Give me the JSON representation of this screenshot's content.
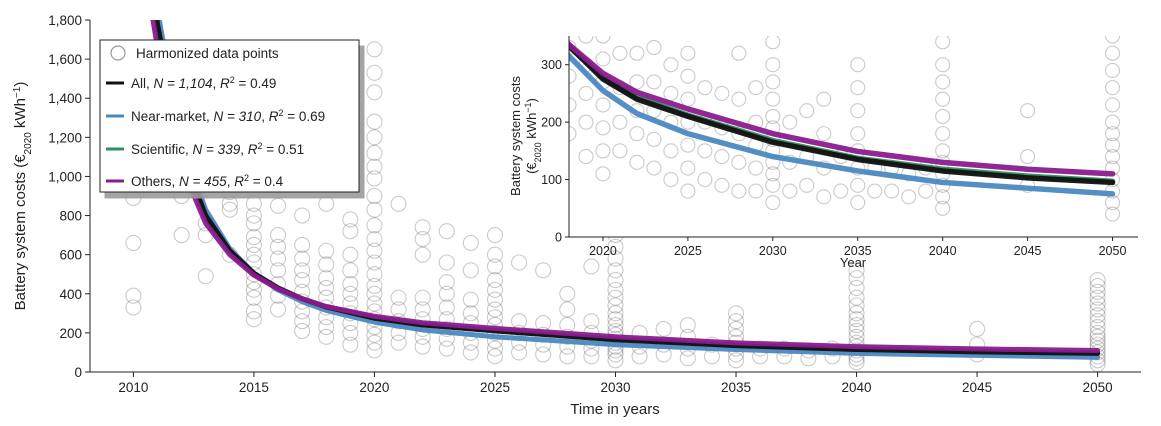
{
  "chart_data": {
    "type": "scatter",
    "main": {
      "xlabel": "Time in years",
      "ylabel": "Battery system costs (€2020 kWh−1)",
      "ylabel_parts": {
        "pre": "Battery system costs (€",
        "sub": "2020",
        "mid": " kWh",
        "sup": "−1",
        "post": ")"
      },
      "xlim": [
        2008.2,
        2051.8
      ],
      "ylim": [
        0,
        1800
      ],
      "xticks": [
        2010,
        2015,
        2020,
        2025,
        2030,
        2035,
        2040,
        2045,
        2050
      ],
      "xtick_labels": [
        "2010",
        "2015",
        "2020",
        "2025",
        "2030",
        "2035",
        "2040",
        "2045",
        "2050"
      ],
      "yticks": [
        0,
        200,
        400,
        600,
        800,
        1000,
        1200,
        1400,
        1600,
        1800
      ],
      "ytick_labels": [
        "0",
        "200",
        "400",
        "600",
        "800",
        "1,000",
        "1,200",
        "1,400",
        "1,600",
        "1,800"
      ],
      "grid": false
    },
    "inset": {
      "xlabel": "Year",
      "ylabel_line1": "Battery system costs",
      "ylabel_line2_parts": {
        "pre": "(€",
        "sub": "2020",
        "mid": " kWh",
        "sup": "−1",
        "post": ")"
      },
      "xlim": [
        2018,
        2051.5
      ],
      "ylim": [
        0,
        350
      ],
      "xticks": [
        2020,
        2025,
        2030,
        2035,
        2040,
        2045,
        2050
      ],
      "xtick_labels": [
        "2020",
        "2025",
        "2030",
        "2035",
        "2040",
        "2045",
        "2050"
      ],
      "yticks": [
        0,
        100,
        200,
        300
      ],
      "ytick_labels": [
        "0",
        "100",
        "200",
        "300"
      ]
    },
    "legend": {
      "position": "top-left",
      "points_label": "Harmonized data points",
      "entries": [
        {
          "name": "All",
          "n_label": "N = 1,104",
          "r2_label": "R",
          "r2_sup": "2",
          "r2_value": " = 0.49",
          "color": "#111111"
        },
        {
          "name": "Near-market",
          "n_label": "N = 310",
          "r2_label": "R",
          "r2_sup": "2",
          "r2_value": " = 0.69",
          "color": "#4a88c2"
        },
        {
          "name": "Scientific",
          "n_label": "N = 339",
          "r2_label": "R",
          "r2_sup": "2",
          "r2_value": " = 0.51",
          "color": "#2f8f5f"
        },
        {
          "name": "Others",
          "n_label": "N = 455",
          "r2_label": "R",
          "r2_sup": "2",
          "r2_value": " = 0.4",
          "color": "#8b1a8f"
        }
      ]
    },
    "fitted_series": [
      {
        "name": "All",
        "color": "#111111",
        "x": [
          2010,
          2011,
          2012,
          2013,
          2014,
          2015,
          2016,
          2017,
          2018,
          2020,
          2022,
          2025,
          2030,
          2035,
          2040,
          2045,
          2050
        ],
        "values": [
          2700,
          1780,
          1120,
          800,
          620,
          505,
          430,
          375,
          333,
          275,
          240,
          210,
          165,
          135,
          115,
          103,
          95
        ]
      },
      {
        "name": "Near-market",
        "color": "#4a88c2",
        "x": [
          2010,
          2011,
          2012,
          2013,
          2014,
          2015,
          2016,
          2017,
          2018,
          2020,
          2022,
          2025,
          2030,
          2035,
          2040,
          2045,
          2050
        ],
        "values": [
          2900,
          1850,
          1170,
          830,
          630,
          505,
          420,
          360,
          315,
          255,
          215,
          180,
          140,
          115,
          95,
          85,
          75
        ]
      },
      {
        "name": "Scientific",
        "color": "#2f8f5f",
        "x": [
          2010,
          2011,
          2012,
          2013,
          2014,
          2015,
          2016,
          2017,
          2018,
          2020,
          2022,
          2025,
          2030,
          2035,
          2040,
          2045,
          2050
        ],
        "values": [
          2600,
          1760,
          1110,
          790,
          615,
          500,
          428,
          373,
          332,
          277,
          243,
          212,
          168,
          137,
          118,
          106,
          97
        ]
      },
      {
        "name": "Others",
        "color": "#8b1a8f",
        "x": [
          2010,
          2011,
          2012,
          2013,
          2014,
          2015,
          2016,
          2017,
          2018,
          2020,
          2022,
          2025,
          2030,
          2035,
          2040,
          2045,
          2050
        ],
        "values": [
          2400,
          1660,
          1050,
          760,
          600,
          495,
          425,
          374,
          335,
          285,
          252,
          223,
          180,
          149,
          130,
          118,
          110
        ]
      }
    ],
    "points": [
      [
        2010,
        330
      ],
      [
        2010,
        390
      ],
      [
        2010,
        660
      ],
      [
        2010,
        890
      ],
      [
        2010,
        1080
      ],
      [
        2011,
        960
      ],
      [
        2011,
        1150
      ],
      [
        2011,
        1370
      ],
      [
        2011,
        1630
      ],
      [
        2012,
        700
      ],
      [
        2012,
        900
      ],
      [
        2012,
        1000
      ],
      [
        2013,
        490
      ],
      [
        2013,
        700
      ],
      [
        2013,
        760
      ],
      [
        2014,
        600
      ],
      [
        2014,
        830
      ],
      [
        2014,
        860
      ],
      [
        2014,
        920
      ],
      [
        2014,
        1000
      ],
      [
        2015,
        270
      ],
      [
        2015,
        310
      ],
      [
        2015,
        380
      ],
      [
        2015,
        420
      ],
      [
        2015,
        460
      ],
      [
        2015,
        500
      ],
      [
        2015,
        560
      ],
      [
        2015,
        600
      ],
      [
        2015,
        650
      ],
      [
        2015,
        690
      ],
      [
        2015,
        760
      ],
      [
        2015,
        800
      ],
      [
        2015,
        860
      ],
      [
        2015,
        940
      ],
      [
        2016,
        320
      ],
      [
        2016,
        390
      ],
      [
        2016,
        450
      ],
      [
        2016,
        520
      ],
      [
        2016,
        580
      ],
      [
        2016,
        640
      ],
      [
        2016,
        700
      ],
      [
        2016,
        850
      ],
      [
        2017,
        210
      ],
      [
        2017,
        260
      ],
      [
        2017,
        310
      ],
      [
        2017,
        360
      ],
      [
        2017,
        410
      ],
      [
        2017,
        470
      ],
      [
        2017,
        520
      ],
      [
        2017,
        580
      ],
      [
        2017,
        650
      ],
      [
        2017,
        800
      ],
      [
        2018,
        180
      ],
      [
        2018,
        230
      ],
      [
        2018,
        280
      ],
      [
        2018,
        330
      ],
      [
        2018,
        380
      ],
      [
        2018,
        430
      ],
      [
        2018,
        480
      ],
      [
        2018,
        550
      ],
      [
        2018,
        620
      ],
      [
        2018,
        860
      ],
      [
        2019,
        140
      ],
      [
        2019,
        200
      ],
      [
        2019,
        250
      ],
      [
        2019,
        300
      ],
      [
        2019,
        350
      ],
      [
        2019,
        400
      ],
      [
        2019,
        450
      ],
      [
        2019,
        520
      ],
      [
        2019,
        600
      ],
      [
        2019,
        720
      ],
      [
        2019,
        780
      ],
      [
        2019,
        1020
      ],
      [
        2020,
        110
      ],
      [
        2020,
        150
      ],
      [
        2020,
        190
      ],
      [
        2020,
        230
      ],
      [
        2020,
        270
      ],
      [
        2020,
        310
      ],
      [
        2020,
        350
      ],
      [
        2020,
        400
      ],
      [
        2020,
        440
      ],
      [
        2020,
        500
      ],
      [
        2020,
        560
      ],
      [
        2020,
        620
      ],
      [
        2020,
        680
      ],
      [
        2020,
        750
      ],
      [
        2020,
        830
      ],
      [
        2020,
        900
      ],
      [
        2020,
        990
      ],
      [
        2020,
        1050
      ],
      [
        2020,
        1120
      ],
      [
        2020,
        1200
      ],
      [
        2020,
        1280
      ],
      [
        2020,
        1430
      ],
      [
        2020,
        1530
      ],
      [
        2020,
        1650
      ],
      [
        2021,
        150
      ],
      [
        2021,
        200
      ],
      [
        2021,
        260
      ],
      [
        2021,
        320
      ],
      [
        2021,
        380
      ],
      [
        2021,
        860
      ],
      [
        2022,
        130
      ],
      [
        2022,
        180
      ],
      [
        2022,
        220
      ],
      [
        2022,
        270
      ],
      [
        2022,
        320
      ],
      [
        2022,
        380
      ],
      [
        2022,
        600
      ],
      [
        2022,
        680
      ],
      [
        2022,
        740
      ],
      [
        2023,
        120
      ],
      [
        2023,
        170
      ],
      [
        2023,
        220
      ],
      [
        2023,
        270
      ],
      [
        2023,
        330
      ],
      [
        2023,
        400
      ],
      [
        2023,
        460
      ],
      [
        2023,
        560
      ],
      [
        2023,
        720
      ],
      [
        2024,
        100
      ],
      [
        2024,
        150
      ],
      [
        2024,
        200
      ],
      [
        2024,
        250
      ],
      [
        2024,
        300
      ],
      [
        2024,
        370
      ],
      [
        2024,
        520
      ],
      [
        2024,
        660
      ],
      [
        2025,
        80
      ],
      [
        2025,
        120
      ],
      [
        2025,
        160
      ],
      [
        2025,
        200
      ],
      [
        2025,
        240
      ],
      [
        2025,
        280
      ],
      [
        2025,
        320
      ],
      [
        2025,
        370
      ],
      [
        2025,
        420
      ],
      [
        2025,
        470
      ],
      [
        2025,
        540
      ],
      [
        2025,
        600
      ],
      [
        2025,
        700
      ],
      [
        2026,
        100
      ],
      [
        2026,
        150
      ],
      [
        2026,
        200
      ],
      [
        2026,
        260
      ],
      [
        2026,
        560
      ],
      [
        2027,
        90
      ],
      [
        2027,
        140
      ],
      [
        2027,
        190
      ],
      [
        2027,
        250
      ],
      [
        2027,
        520
      ],
      [
        2028,
        80
      ],
      [
        2028,
        130
      ],
      [
        2028,
        180
      ],
      [
        2028,
        240
      ],
      [
        2028,
        320
      ],
      [
        2028,
        400
      ],
      [
        2029,
        80
      ],
      [
        2029,
        120
      ],
      [
        2029,
        160
      ],
      [
        2029,
        200
      ],
      [
        2029,
        260
      ],
      [
        2029,
        540
      ],
      [
        2030,
        60
      ],
      [
        2030,
        90
      ],
      [
        2030,
        110
      ],
      [
        2030,
        130
      ],
      [
        2030,
        150
      ],
      [
        2030,
        170
      ],
      [
        2030,
        190
      ],
      [
        2030,
        210
      ],
      [
        2030,
        240
      ],
      [
        2030,
        270
      ],
      [
        2030,
        300
      ],
      [
        2030,
        340
      ],
      [
        2030,
        380
      ],
      [
        2030,
        420
      ],
      [
        2030,
        470
      ],
      [
        2030,
        520
      ],
      [
        2030,
        580
      ],
      [
        2030,
        640
      ],
      [
        2030,
        700
      ],
      [
        2030,
        780
      ],
      [
        2030,
        860
      ],
      [
        2030,
        940
      ],
      [
        2031,
        80
      ],
      [
        2031,
        130
      ],
      [
        2031,
        200
      ],
      [
        2032,
        90
      ],
      [
        2032,
        140
      ],
      [
        2032,
        220
      ],
      [
        2033,
        70
      ],
      [
        2033,
        120
      ],
      [
        2033,
        180
      ],
      [
        2033,
        240
      ],
      [
        2034,
        80
      ],
      [
        2034,
        140
      ],
      [
        2035,
        60
      ],
      [
        2035,
        90
      ],
      [
        2035,
        120
      ],
      [
        2035,
        150
      ],
      [
        2035,
        180
      ],
      [
        2035,
        220
      ],
      [
        2035,
        260
      ],
      [
        2035,
        300
      ],
      [
        2036,
        80
      ],
      [
        2036,
        120
      ],
      [
        2037,
        80
      ],
      [
        2037,
        120
      ],
      [
        2038,
        70
      ],
      [
        2038,
        110
      ],
      [
        2039,
        80
      ],
      [
        2039,
        120
      ],
      [
        2040,
        50
      ],
      [
        2040,
        70
      ],
      [
        2040,
        90
      ],
      [
        2040,
        110
      ],
      [
        2040,
        130
      ],
      [
        2040,
        150
      ],
      [
        2040,
        180
      ],
      [
        2040,
        210
      ],
      [
        2040,
        240
      ],
      [
        2040,
        270
      ],
      [
        2040,
        300
      ],
      [
        2040,
        340
      ],
      [
        2040,
        380
      ],
      [
        2040,
        430
      ],
      [
        2040,
        480
      ],
      [
        2040,
        520
      ],
      [
        2045,
        90
      ],
      [
        2045,
        140
      ],
      [
        2045,
        220
      ],
      [
        2050,
        40
      ],
      [
        2050,
        60
      ],
      [
        2050,
        80
      ],
      [
        2050,
        100
      ],
      [
        2050,
        120
      ],
      [
        2050,
        140
      ],
      [
        2050,
        160
      ],
      [
        2050,
        180
      ],
      [
        2050,
        200
      ],
      [
        2050,
        230
      ],
      [
        2050,
        260
      ],
      [
        2050,
        290
      ],
      [
        2050,
        320
      ],
      [
        2050,
        350
      ],
      [
        2050,
        380
      ],
      [
        2050,
        410
      ],
      [
        2050,
        440
      ],
      [
        2050,
        470
      ]
    ]
  }
}
